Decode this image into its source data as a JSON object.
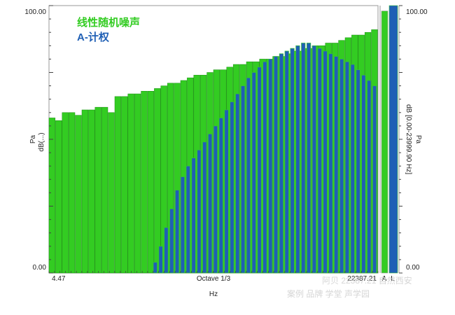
{
  "watermark": {
    "line1": "阿贝 22387.21 自然西安",
    "line2": "案例  品牌  学堂  声学园"
  },
  "colors": {
    "background": "#ffffff",
    "noise_fill": "#33cc22",
    "noise_stroke": "#1a8f12",
    "a_weight_fill": "#1f5fb5",
    "a_weight_edge": "#3ac23a"
  },
  "chart_data": {
    "type": "bar",
    "title": "",
    "xlabel": "Hz",
    "ylabel": "Pa",
    "ylabel2": "dB(...)",
    "ylim": [
      0,
      100
    ],
    "y_tick_labels": [
      "100.00",
      "0.00"
    ],
    "x_tick_labels": [
      "4.47",
      "Octave 1/3",
      "22387.21"
    ],
    "grid": false,
    "legend_position": "top-left",
    "series": [
      {
        "name": "线性随机噪声",
        "color": "#33cc22",
        "values": [
          58,
          57,
          60,
          60,
          59,
          61,
          61,
          62,
          62,
          60,
          66,
          66,
          67,
          67,
          68,
          68,
          69,
          70,
          71,
          71,
          72,
          73,
          74,
          74,
          75,
          76,
          76,
          77,
          78,
          78,
          79,
          79,
          80,
          80,
          81,
          81,
          82,
          83,
          83,
          84,
          85,
          85,
          86,
          86,
          87,
          88,
          89,
          89,
          90,
          91
        ]
      },
      {
        "name": "A-计权",
        "color": "#1f5fb5",
        "values": [
          0,
          0,
          0,
          0,
          0,
          0,
          0,
          0,
          0,
          0,
          0,
          0,
          0,
          0,
          0,
          0,
          0,
          0,
          0,
          4,
          10,
          17,
          24,
          31,
          36,
          40,
          43,
          46,
          49,
          52,
          55,
          58,
          61,
          64,
          67,
          70,
          73,
          75,
          77,
          79,
          80,
          81,
          82,
          83,
          84,
          85,
          86,
          86,
          85,
          84,
          83,
          82,
          81,
          80,
          79,
          78,
          76,
          74,
          72,
          70
        ]
      }
    ],
    "colorbar": {
      "top_label": "100.00",
      "bottom_label": "0.00",
      "axis_label": "dB [0.00-23999.90 Hz]",
      "unit_label": "Pa",
      "mini_labels": [
        "A",
        "L"
      ],
      "levels": {
        "A": 98,
        "L": 100
      }
    }
  }
}
